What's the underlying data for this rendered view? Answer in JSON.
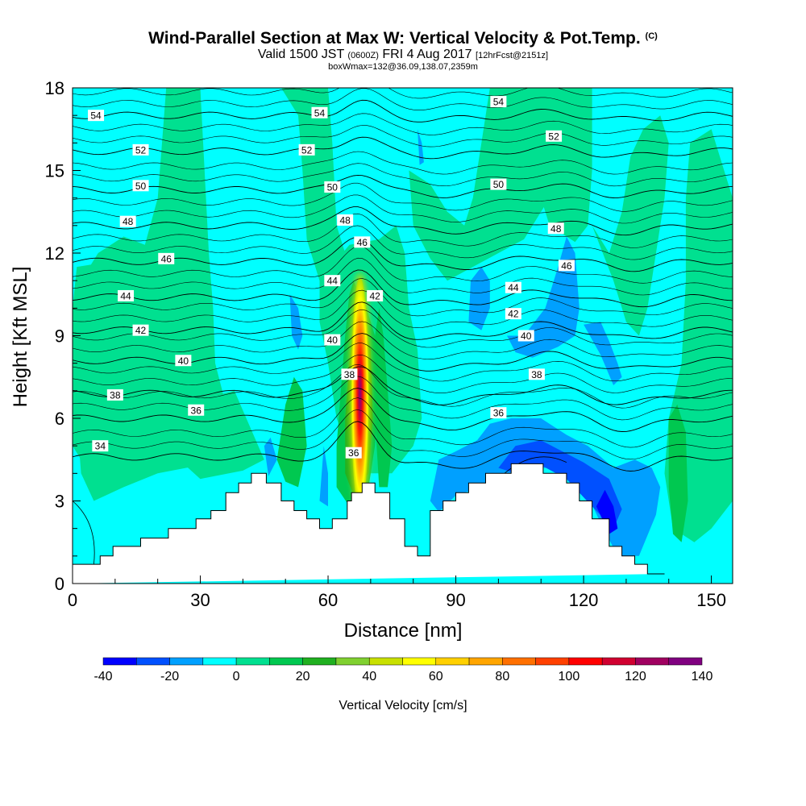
{
  "title": {
    "main": "Wind-Parallel Section at Max W: Vertical Velocity & Pot.Temp.",
    "copyright": "(C)",
    "valid_pre": "Valid 1500 JST",
    "valid_utc": "(0600Z)",
    "valid_date": "FRI 4 Aug 2017",
    "forecast": "[12hrFcst@2151z]",
    "box": "boxWmax=132@36.09,138.07,2359m"
  },
  "chart_data": {
    "type": "heatmap",
    "xlabel": "Distance [nm]",
    "ylabel": "Height [Kft MSL]",
    "xlim": [
      0,
      155
    ],
    "ylim": [
      0,
      18
    ],
    "xticks": [
      0,
      30,
      60,
      90,
      120,
      150
    ],
    "yticks": [
      0,
      3,
      6,
      9,
      12,
      15,
      18
    ],
    "terrain": {
      "x": [
        0,
        6.5,
        6.5,
        9.5,
        9.5,
        16,
        16,
        22.5,
        22.5,
        29,
        29,
        32.5,
        32.5,
        36,
        36,
        39,
        39,
        42,
        42,
        45.5,
        45.5,
        49,
        49,
        52,
        52,
        55,
        55,
        58,
        58,
        61,
        61,
        64.5,
        64.5,
        65.5,
        65.5,
        68,
        68,
        71,
        71,
        74.5,
        74.5,
        78,
        78,
        81,
        81,
        84,
        84,
        87,
        87,
        90,
        90,
        93,
        93,
        97,
        97,
        103,
        103,
        110.5,
        110.5,
        116,
        116,
        119,
        119,
        122,
        122,
        126,
        126,
        129,
        129,
        132,
        132,
        135,
        135,
        139,
        139,
        155
      ],
      "y": [
        0.7,
        0.7,
        1.0,
        1.0,
        1.35,
        1.35,
        1.65,
        1.65,
        2.0,
        2.0,
        2.35,
        2.35,
        2.65,
        2.65,
        3.3,
        3.3,
        3.65,
        3.65,
        4.0,
        4.0,
        3.65,
        3.65,
        3.0,
        3.0,
        2.65,
        2.65,
        2.35,
        2.35,
        2.0,
        2.0,
        2.35,
        2.35,
        3.0,
        3.0,
        3.3,
        3.3,
        3.65,
        3.65,
        3.3,
        3.3,
        2.35,
        2.35,
        1.35,
        1.35,
        1.0,
        1.0,
        2.65,
        2.65,
        3.0,
        3.0,
        3.3,
        3.3,
        3.65,
        3.65,
        4.0,
        4.0,
        4.35,
        4.35,
        4.0,
        4.0,
        3.65,
        3.65,
        3.0,
        3.0,
        2.35,
        2.35,
        1.35,
        1.35,
        1.0,
        1.0,
        0.7,
        0.7,
        0.35,
        0.35
      ]
    },
    "theta_contours": [
      34,
      36,
      38,
      40,
      42,
      44,
      46,
      48,
      50,
      52,
      54
    ],
    "contour_labels": [
      {
        "x": 5.5,
        "y": 17.0,
        "text": "54"
      },
      {
        "x": 58,
        "y": 17.1,
        "text": "54"
      },
      {
        "x": 100,
        "y": 17.5,
        "text": "54"
      },
      {
        "x": 16,
        "y": 15.75,
        "text": "52"
      },
      {
        "x": 55,
        "y": 15.75,
        "text": "52"
      },
      {
        "x": 113,
        "y": 16.25,
        "text": "52"
      },
      {
        "x": 16,
        "y": 14.45,
        "text": "50"
      },
      {
        "x": 61,
        "y": 14.4,
        "text": "50"
      },
      {
        "x": 100,
        "y": 14.5,
        "text": "50"
      },
      {
        "x": 13,
        "y": 13.15,
        "text": "48"
      },
      {
        "x": 64,
        "y": 13.2,
        "text": "48"
      },
      {
        "x": 113.5,
        "y": 12.9,
        "text": "48"
      },
      {
        "x": 22,
        "y": 11.8,
        "text": "46"
      },
      {
        "x": 68,
        "y": 12.4,
        "text": "46"
      },
      {
        "x": 116,
        "y": 11.55,
        "text": "46"
      },
      {
        "x": 12.5,
        "y": 10.45,
        "text": "44"
      },
      {
        "x": 61,
        "y": 11.0,
        "text": "44"
      },
      {
        "x": 103.5,
        "y": 10.75,
        "text": "44"
      },
      {
        "x": 16,
        "y": 9.2,
        "text": "42"
      },
      {
        "x": 71,
        "y": 10.45,
        "text": "42"
      },
      {
        "x": 103.5,
        "y": 9.8,
        "text": "42"
      },
      {
        "x": 26,
        "y": 8.1,
        "text": "40"
      },
      {
        "x": 61,
        "y": 8.85,
        "text": "40"
      },
      {
        "x": 106.5,
        "y": 9.0,
        "text": "40"
      },
      {
        "x": 10,
        "y": 6.85,
        "text": "38"
      },
      {
        "x": 65,
        "y": 7.6,
        "text": "38"
      },
      {
        "x": 109,
        "y": 7.6,
        "text": "38"
      },
      {
        "x": 29,
        "y": 6.3,
        "text": "36"
      },
      {
        "x": 66,
        "y": 4.75,
        "text": "36"
      },
      {
        "x": 100,
        "y": 6.2,
        "text": "36"
      },
      {
        "x": 6.5,
        "y": 5.0,
        "text": "34"
      }
    ],
    "updraft_core": {
      "x": 67.5,
      "y_bottom": 2.8,
      "y_top": 11.4,
      "w_max": 132
    },
    "colorbar": {
      "label": "Vertical Velocity [cm/s]",
      "tick_labels": [
        "-40",
        "-20",
        "0",
        "20",
        "40",
        "60",
        "80",
        "100",
        "120",
        "140"
      ],
      "levels": [
        -40,
        -30,
        -20,
        -10,
        0,
        10,
        20,
        30,
        40,
        50,
        60,
        70,
        80,
        90,
        100,
        110,
        120,
        130,
        140
      ],
      "colors": [
        "#0000ff",
        "#0050ff",
        "#00a0ff",
        "#00ffff",
        "#00e090",
        "#00c850",
        "#20b020",
        "#80d030",
        "#c8e000",
        "#ffff00",
        "#ffd000",
        "#ffa500",
        "#ff7000",
        "#ff4000",
        "#ff0000",
        "#d00030",
        "#a00060",
        "#800080"
      ]
    }
  }
}
